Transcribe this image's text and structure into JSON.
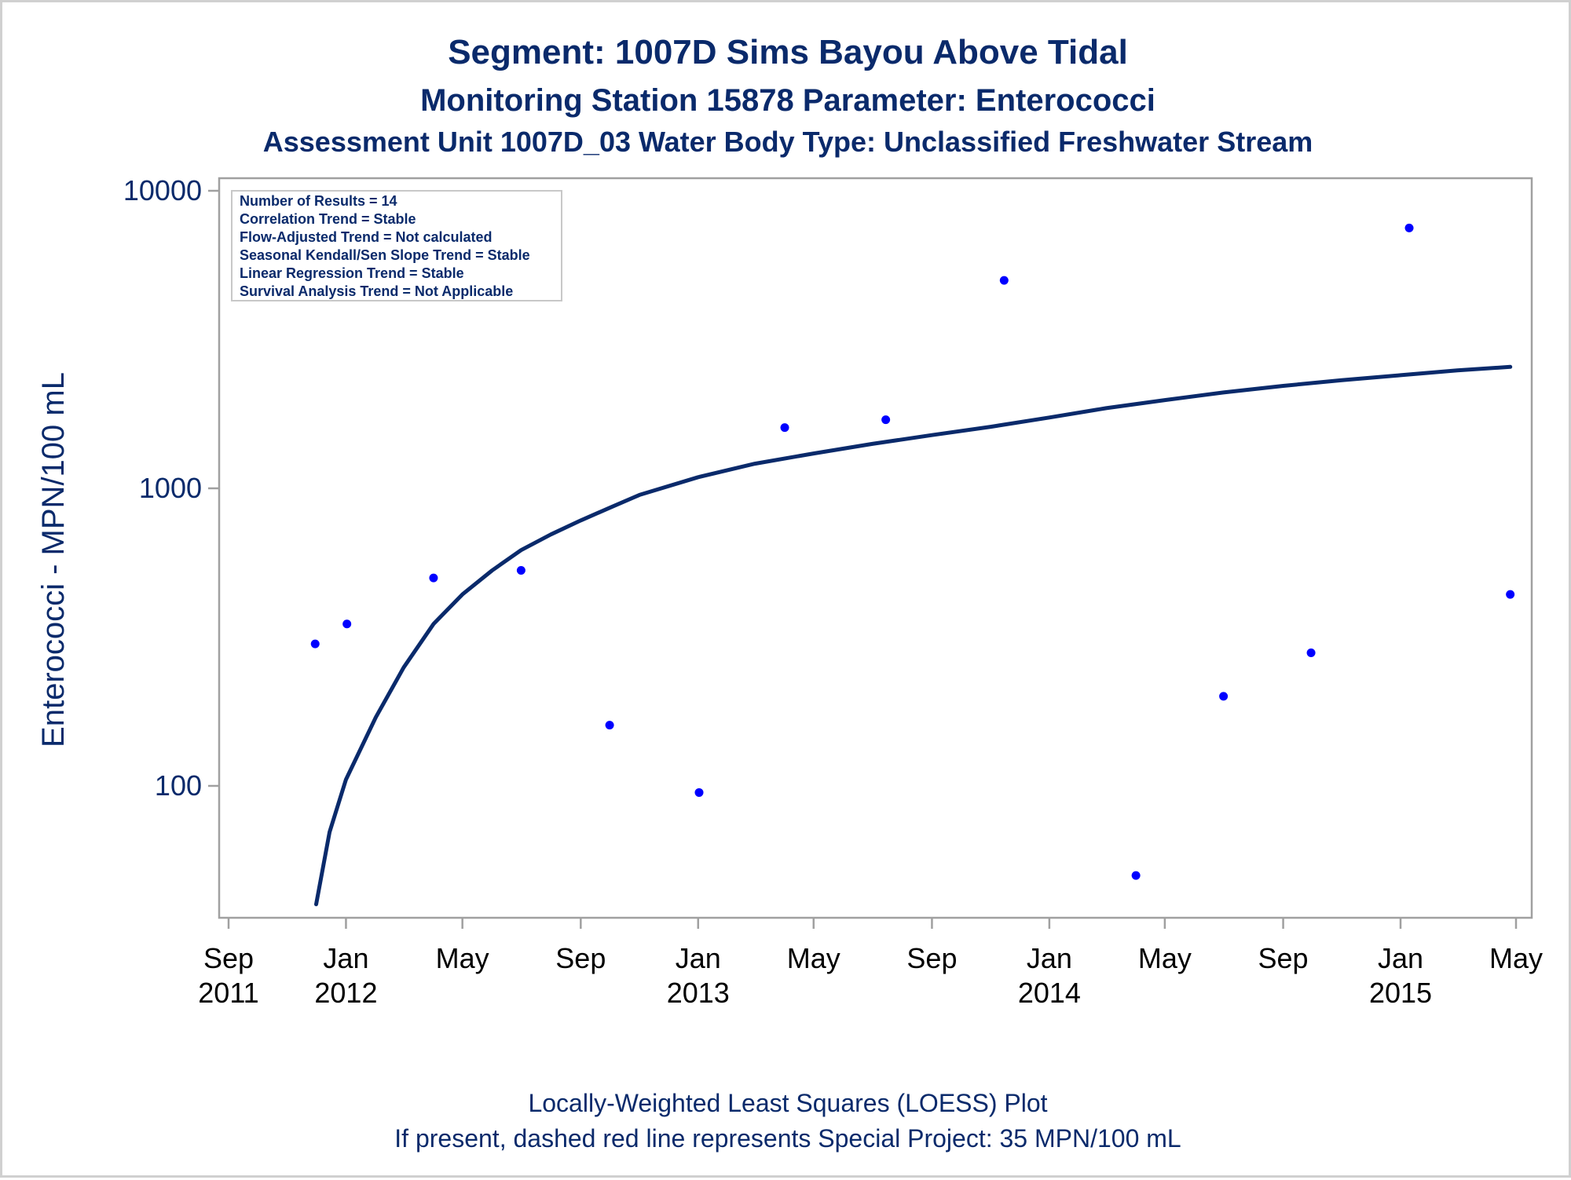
{
  "chart_data": {
    "type": "scatter",
    "title": "Segment: 1007D  Sims Bayou Above Tidal",
    "subtitle": "Monitoring Station 15878 Parameter: Enterococci",
    "subtitle2": "Assessment Unit 1007D_03   Water Body Type: Unclassified Freshwater Stream",
    "ylabel": "Enterococci - MPN/100 mL",
    "yscale": "log",
    "ylim": [
      40,
      10000
    ],
    "y_ticks": [
      "100",
      "1000",
      "10000"
    ],
    "xlim": [
      "2011-09-01",
      "2015-05-01"
    ],
    "x_ticks": [
      {
        "date": "2011-09-01",
        "label1": "Sep",
        "label2": "2011"
      },
      {
        "date": "2012-01-01",
        "label1": "Jan",
        "label2": "2012"
      },
      {
        "date": "2012-05-01",
        "label1": "May",
        "label2": ""
      },
      {
        "date": "2012-09-01",
        "label1": "Sep",
        "label2": ""
      },
      {
        "date": "2013-01-01",
        "label1": "Jan",
        "label2": "2013"
      },
      {
        "date": "2013-05-01",
        "label1": "May",
        "label2": ""
      },
      {
        "date": "2013-09-01",
        "label1": "Sep",
        "label2": ""
      },
      {
        "date": "2014-01-01",
        "label1": "Jan",
        "label2": "2014"
      },
      {
        "date": "2014-05-01",
        "label1": "May",
        "label2": ""
      },
      {
        "date": "2014-09-01",
        "label1": "Sep",
        "label2": ""
      },
      {
        "date": "2015-01-01",
        "label1": "Jan",
        "label2": "2015"
      },
      {
        "date": "2015-05-01",
        "label1": "May",
        "label2": ""
      }
    ],
    "points": [
      {
        "x": "2011-11-30",
        "y": 300
      },
      {
        "x": "2012-01-02",
        "y": 350
      },
      {
        "x": "2012-04-01",
        "y": 500
      },
      {
        "x": "2012-07-01",
        "y": 530
      },
      {
        "x": "2012-10-01",
        "y": 160
      },
      {
        "x": "2013-01-02",
        "y": 95
      },
      {
        "x": "2013-04-01",
        "y": 1600
      },
      {
        "x": "2013-07-15",
        "y": 1700
      },
      {
        "x": "2013-11-15",
        "y": 5000
      },
      {
        "x": "2014-04-01",
        "y": 50
      },
      {
        "x": "2014-07-01",
        "y": 200
      },
      {
        "x": "2014-09-30",
        "y": 280
      },
      {
        "x": "2015-01-10",
        "y": 7500
      },
      {
        "x": "2015-04-25",
        "y": 440
      }
    ],
    "loess": [
      {
        "x": "2011-12-01",
        "y": 40
      },
      {
        "x": "2011-12-15",
        "y": 70
      },
      {
        "x": "2012-01-01",
        "y": 105
      },
      {
        "x": "2012-02-01",
        "y": 170
      },
      {
        "x": "2012-03-01",
        "y": 250
      },
      {
        "x": "2012-04-01",
        "y": 350
      },
      {
        "x": "2012-05-01",
        "y": 440
      },
      {
        "x": "2012-06-01",
        "y": 530
      },
      {
        "x": "2012-07-01",
        "y": 620
      },
      {
        "x": "2012-08-01",
        "y": 700
      },
      {
        "x": "2012-09-01",
        "y": 780
      },
      {
        "x": "2012-10-01",
        "y": 860
      },
      {
        "x": "2012-11-01",
        "y": 950
      },
      {
        "x": "2013-01-01",
        "y": 1090
      },
      {
        "x": "2013-03-01",
        "y": 1210
      },
      {
        "x": "2013-05-01",
        "y": 1310
      },
      {
        "x": "2013-07-01",
        "y": 1410
      },
      {
        "x": "2013-09-01",
        "y": 1510
      },
      {
        "x": "2013-11-01",
        "y": 1610
      },
      {
        "x": "2014-01-01",
        "y": 1730
      },
      {
        "x": "2014-03-01",
        "y": 1860
      },
      {
        "x": "2014-05-01",
        "y": 1980
      },
      {
        "x": "2014-07-01",
        "y": 2100
      },
      {
        "x": "2014-09-01",
        "y": 2210
      },
      {
        "x": "2014-11-01",
        "y": 2310
      },
      {
        "x": "2015-01-01",
        "y": 2400
      },
      {
        "x": "2015-03-01",
        "y": 2490
      },
      {
        "x": "2015-04-25",
        "y": 2560
      }
    ],
    "stats": [
      "Number of Results = 14",
      "Correlation Trend = Stable",
      "Flow-Adjusted Trend = Not calculated",
      "Seasonal Kendall/Sen Slope Trend = Stable",
      "Linear Regression Trend = Stable",
      "Survival Analysis Trend = Not Applicable"
    ],
    "footnotes": [
      "Locally-Weighted Least Squares (LOESS) Plot",
      "If present, dashed red line represents Special Project: 35 MPN/100 mL"
    ],
    "colors": {
      "points": "#0000ff",
      "line": "#0a2a6b",
      "text": "#0a2a6b",
      "axis": "#a0a0a0"
    },
    "grid": false,
    "legend": "top-left"
  }
}
